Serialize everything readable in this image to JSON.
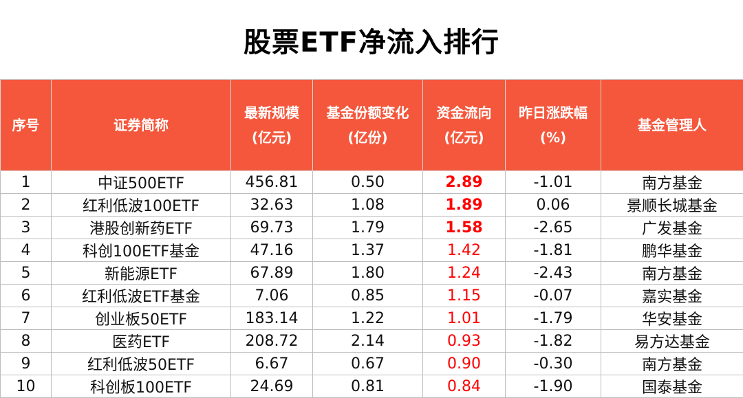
{
  "title": "股票ETF净流入排行",
  "colors": {
    "header_bg": "#f4573c",
    "header_text": "#ffffff",
    "flow_text": "#ff0000"
  },
  "headers": [
    {
      "line1": "序号",
      "line2": ""
    },
    {
      "line1": "证券简称",
      "line2": ""
    },
    {
      "line1": "最新规模",
      "line2": "(亿元)"
    },
    {
      "line1": "基金份额变化",
      "line2": "(亿份)"
    },
    {
      "line1": "资金流向",
      "line2": "(亿元)"
    },
    {
      "line1": "昨日涨跌幅",
      "line2": "(%)"
    },
    {
      "line1": "基金管理人",
      "line2": ""
    }
  ],
  "rows": [
    {
      "no": "1",
      "name": "中证500ETF",
      "scale": "456.81",
      "share_change": "0.50",
      "flow": "2.89",
      "change_pct": "-1.01",
      "manager": "南方基金",
      "flow_bold": true
    },
    {
      "no": "2",
      "name": "红利低波100ETF",
      "scale": "32.63",
      "share_change": "1.08",
      "flow": "1.89",
      "change_pct": "0.06",
      "manager": "景顺长城基金",
      "flow_bold": true
    },
    {
      "no": "3",
      "name": "港股创新药ETF",
      "scale": "69.73",
      "share_change": "1.79",
      "flow": "1.58",
      "change_pct": "-2.65",
      "manager": "广发基金",
      "flow_bold": true
    },
    {
      "no": "4",
      "name": "科创100ETF基金",
      "scale": "47.16",
      "share_change": "1.37",
      "flow": "1.42",
      "change_pct": "-1.81",
      "manager": "鹏华基金",
      "flow_bold": false
    },
    {
      "no": "5",
      "name": "新能源ETF",
      "scale": "67.89",
      "share_change": "1.80",
      "flow": "1.24",
      "change_pct": "-2.43",
      "manager": "南方基金",
      "flow_bold": false
    },
    {
      "no": "6",
      "name": "红利低波ETF基金",
      "scale": "7.06",
      "share_change": "0.85",
      "flow": "1.15",
      "change_pct": "-0.07",
      "manager": "嘉实基金",
      "flow_bold": false
    },
    {
      "no": "7",
      "name": "创业板50ETF",
      "scale": "183.14",
      "share_change": "1.22",
      "flow": "1.01",
      "change_pct": "-1.79",
      "manager": "华安基金",
      "flow_bold": false
    },
    {
      "no": "8",
      "name": "医药ETF",
      "scale": "208.72",
      "share_change": "2.14",
      "flow": "0.93",
      "change_pct": "-1.82",
      "manager": "易方达基金",
      "flow_bold": false
    },
    {
      "no": "9",
      "name": "红利低波50ETF",
      "scale": "6.67",
      "share_change": "0.67",
      "flow": "0.90",
      "change_pct": "-0.30",
      "manager": "南方基金",
      "flow_bold": false
    },
    {
      "no": "10",
      "name": "科创板100ETF",
      "scale": "24.69",
      "share_change": "0.81",
      "flow": "0.84",
      "change_pct": "-1.90",
      "manager": "国泰基金",
      "flow_bold": false
    }
  ]
}
